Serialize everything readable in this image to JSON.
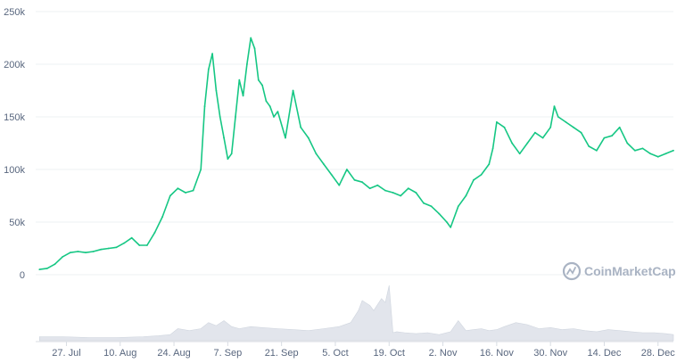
{
  "chart_data": {
    "type": "line",
    "title": "",
    "xlabel": "",
    "ylabel": "",
    "ylim": [
      0,
      250000
    ],
    "xlim": [
      "2021-07-19",
      "2022-01-01"
    ],
    "grid": true,
    "legend": "none",
    "y_ticks": [
      {
        "value": 0,
        "label": "0"
      },
      {
        "value": 50000,
        "label": "50k"
      },
      {
        "value": 100000,
        "label": "100k"
      },
      {
        "value": 150000,
        "label": "150k"
      },
      {
        "value": 200000,
        "label": "200k"
      },
      {
        "value": 250000,
        "label": "250k"
      }
    ],
    "x_ticks": [
      {
        "date": "2021-07-27",
        "label": "27. Jul"
      },
      {
        "date": "2021-08-10",
        "label": "10. Aug"
      },
      {
        "date": "2021-08-24",
        "label": "24. Aug"
      },
      {
        "date": "2021-09-07",
        "label": "7. Sep"
      },
      {
        "date": "2021-09-21",
        "label": "21. Sep"
      },
      {
        "date": "2021-10-05",
        "label": "5. Oct"
      },
      {
        "date": "2021-10-19",
        "label": "19. Oct"
      },
      {
        "date": "2021-11-02",
        "label": "2. Nov"
      },
      {
        "date": "2021-11-16",
        "label": "16. Nov"
      },
      {
        "date": "2021-11-30",
        "label": "30. Nov"
      },
      {
        "date": "2021-12-14",
        "label": "14. Dec"
      },
      {
        "date": "2021-12-28",
        "label": "28. Dec"
      }
    ],
    "series": [
      {
        "color": "#16c784",
        "x": [
          "2021-07-20",
          "2021-07-22",
          "2021-07-24",
          "2021-07-26",
          "2021-07-28",
          "2021-07-30",
          "2021-08-01",
          "2021-08-03",
          "2021-08-05",
          "2021-08-07",
          "2021-08-09",
          "2021-08-11",
          "2021-08-13",
          "2021-08-15",
          "2021-08-17",
          "2021-08-19",
          "2021-08-21",
          "2021-08-23",
          "2021-08-25",
          "2021-08-27",
          "2021-08-29",
          "2021-08-31",
          "2021-09-01",
          "2021-09-02",
          "2021-09-03",
          "2021-09-04",
          "2021-09-05",
          "2021-09-06",
          "2021-09-07",
          "2021-09-08",
          "2021-09-09",
          "2021-09-10",
          "2021-09-11",
          "2021-09-12",
          "2021-09-13",
          "2021-09-14",
          "2021-09-15",
          "2021-09-16",
          "2021-09-17",
          "2021-09-18",
          "2021-09-19",
          "2021-09-20",
          "2021-09-22",
          "2021-09-24",
          "2021-09-26",
          "2021-09-28",
          "2021-09-30",
          "2021-10-02",
          "2021-10-04",
          "2021-10-06",
          "2021-10-08",
          "2021-10-10",
          "2021-10-12",
          "2021-10-14",
          "2021-10-16",
          "2021-10-18",
          "2021-10-20",
          "2021-10-22",
          "2021-10-24",
          "2021-10-26",
          "2021-10-28",
          "2021-10-30",
          "2021-11-01",
          "2021-11-03",
          "2021-11-04",
          "2021-11-06",
          "2021-11-08",
          "2021-11-10",
          "2021-11-12",
          "2021-11-14",
          "2021-11-15",
          "2021-11-16",
          "2021-11-18",
          "2021-11-20",
          "2021-11-22",
          "2021-11-24",
          "2021-11-26",
          "2021-11-28",
          "2021-11-30",
          "2021-12-01",
          "2021-12-02",
          "2021-12-04",
          "2021-12-06",
          "2021-12-08",
          "2021-12-10",
          "2021-12-12",
          "2021-12-14",
          "2021-12-16",
          "2021-12-18",
          "2021-12-20",
          "2021-12-22",
          "2021-12-24",
          "2021-12-26",
          "2021-12-28",
          "2021-12-30",
          "2022-01-01"
        ],
        "values": [
          5000,
          6000,
          10000,
          17000,
          21000,
          22000,
          21000,
          22000,
          24000,
          25000,
          26000,
          30000,
          35000,
          28000,
          28000,
          40000,
          55000,
          75000,
          82000,
          78000,
          80000,
          100000,
          160000,
          195000,
          210000,
          175000,
          150000,
          130000,
          110000,
          115000,
          150000,
          185000,
          170000,
          200000,
          225000,
          215000,
          185000,
          180000,
          165000,
          160000,
          150000,
          155000,
          130000,
          175000,
          140000,
          130000,
          115000,
          105000,
          95000,
          85000,
          100000,
          90000,
          88000,
          82000,
          85000,
          80000,
          78000,
          75000,
          82000,
          78000,
          68000,
          65000,
          58000,
          50000,
          45000,
          65000,
          75000,
          90000,
          95000,
          105000,
          120000,
          145000,
          140000,
          125000,
          115000,
          125000,
          135000,
          130000,
          140000,
          160000,
          150000,
          145000,
          140000,
          135000,
          122000,
          118000,
          130000,
          132000,
          140000,
          125000,
          118000,
          120000,
          115000,
          112000,
          115000,
          118000
        ]
      }
    ],
    "volume": {
      "color": "#e2e5ec",
      "x": [
        "2021-07-20",
        "2021-07-26",
        "2021-08-02",
        "2021-08-09",
        "2021-08-16",
        "2021-08-20",
        "2021-08-23",
        "2021-08-25",
        "2021-08-28",
        "2021-08-31",
        "2021-09-02",
        "2021-09-04",
        "2021-09-06",
        "2021-09-08",
        "2021-09-10",
        "2021-09-13",
        "2021-09-16",
        "2021-09-20",
        "2021-09-24",
        "2021-09-28",
        "2021-10-02",
        "2021-10-06",
        "2021-10-09",
        "2021-10-11",
        "2021-10-12",
        "2021-10-14",
        "2021-10-15",
        "2021-10-17",
        "2021-10-18",
        "2021-10-19",
        "2021-10-20",
        "2021-10-21",
        "2021-10-23",
        "2021-10-26",
        "2021-10-29",
        "2021-11-01",
        "2021-11-04",
        "2021-11-06",
        "2021-11-08",
        "2021-11-10",
        "2021-11-12",
        "2021-11-14",
        "2021-11-16",
        "2021-11-18",
        "2021-11-21",
        "2021-11-24",
        "2021-11-27",
        "2021-11-30",
        "2021-12-03",
        "2021-12-06",
        "2021-12-09",
        "2021-12-12",
        "2021-12-15",
        "2021-12-18",
        "2021-12-21",
        "2021-12-24",
        "2021-12-27",
        "2021-12-30",
        "2022-01-01"
      ],
      "values": [
        4,
        4,
        3,
        3,
        4,
        5,
        6,
        12,
        10,
        12,
        18,
        15,
        20,
        14,
        12,
        14,
        13,
        12,
        11,
        10,
        12,
        14,
        18,
        30,
        40,
        35,
        30,
        42,
        38,
        55,
        8,
        9,
        8,
        7,
        8,
        6,
        9,
        20,
        10,
        11,
        12,
        10,
        11,
        14,
        18,
        16,
        12,
        13,
        11,
        12,
        10,
        9,
        11,
        10,
        9,
        8,
        8,
        7,
        6
      ]
    }
  },
  "watermark": {
    "text": "CoinMarketCap"
  }
}
